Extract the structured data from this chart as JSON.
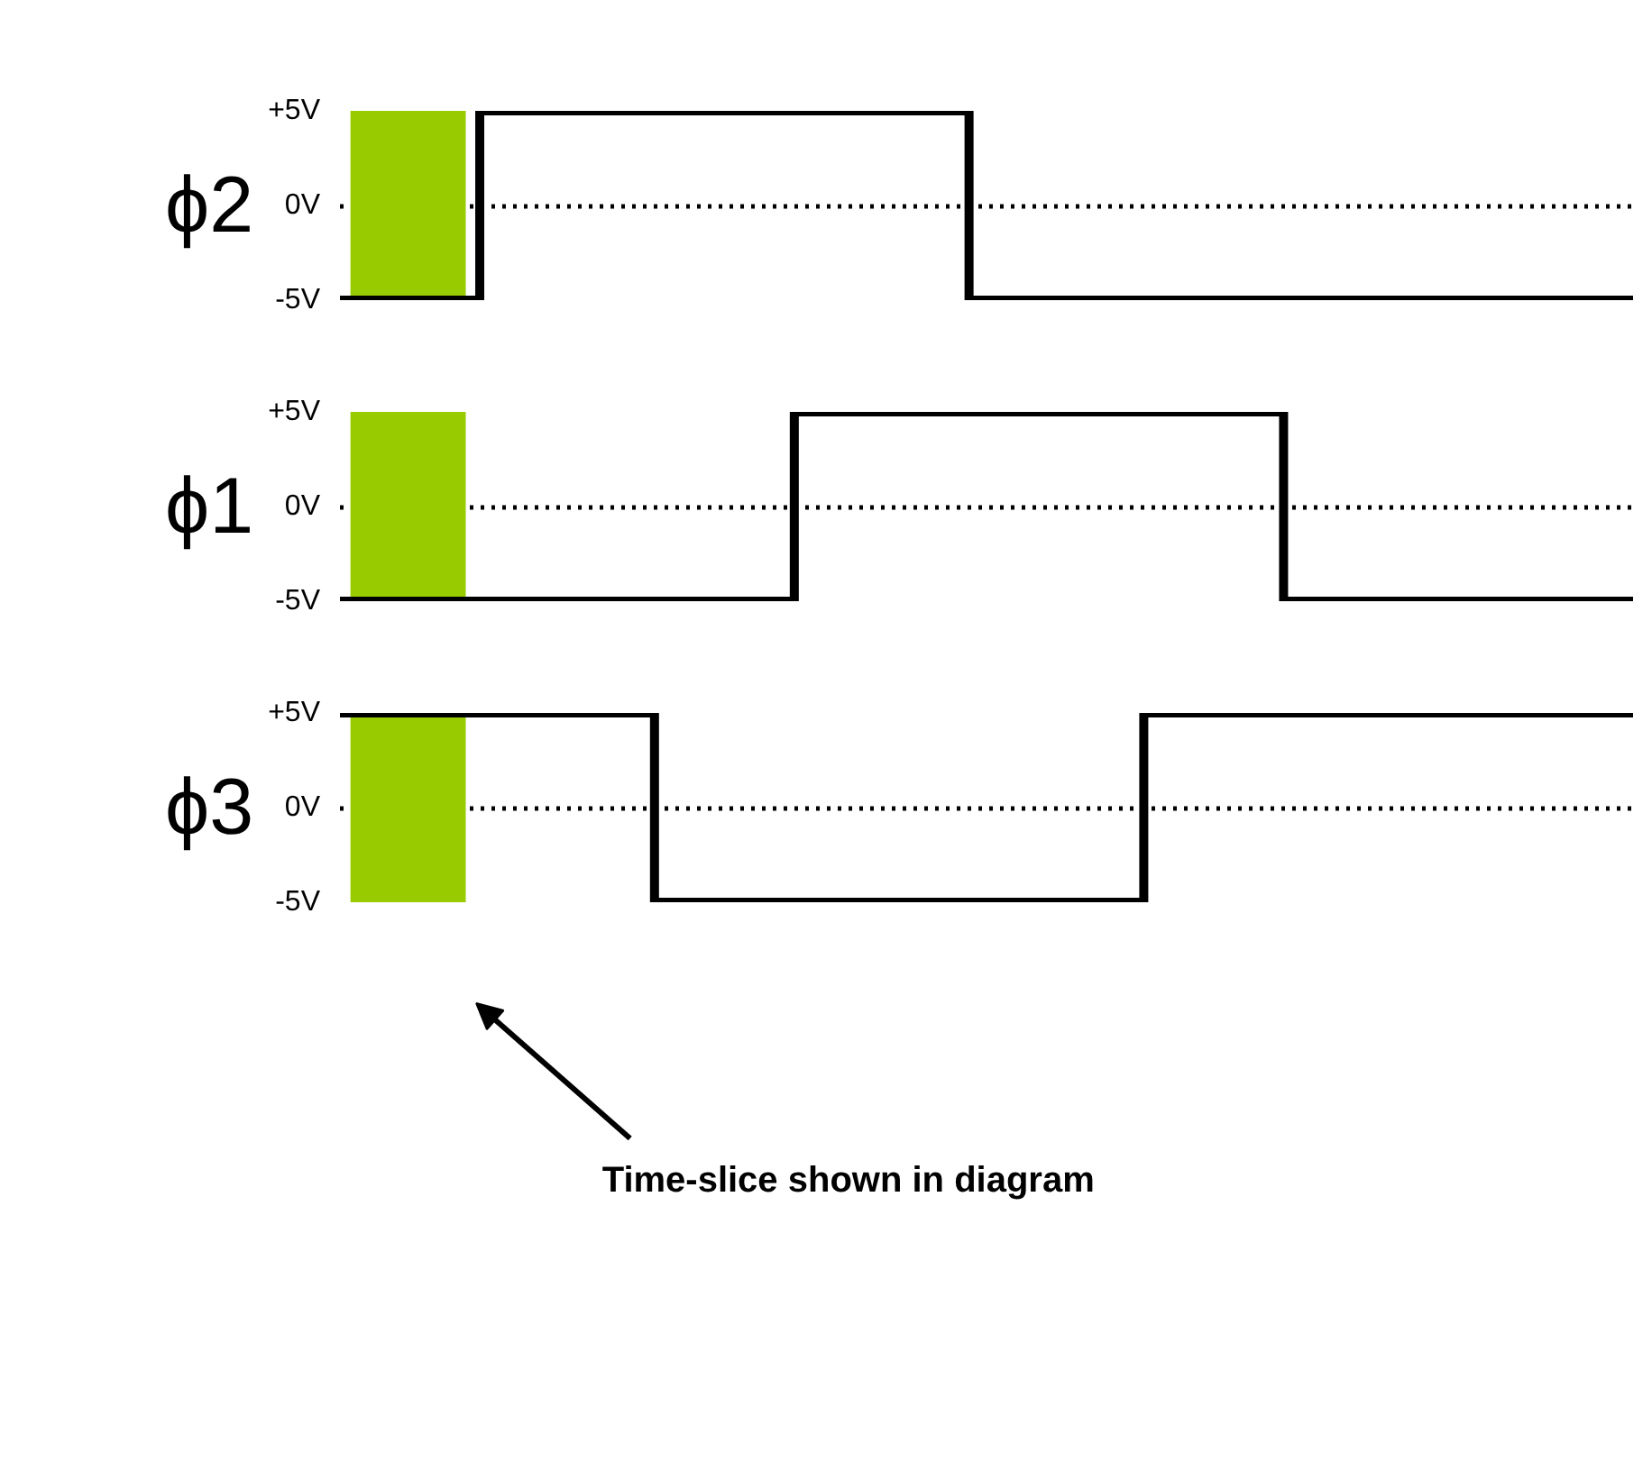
{
  "chart_data": [
    {
      "type": "step",
      "ylabel": "ϕ2",
      "categories": [
        null,
        null,
        null,
        null,
        null,
        null,
        null,
        null,
        null,
        null,
        null,
        null,
        null,
        null,
        null,
        null,
        null,
        null,
        null,
        null,
        null,
        null,
        null,
        null,
        null,
        null,
        null,
        null,
        null,
        null,
        null,
        null,
        null,
        null,
        null,
        null,
        null,
        null
      ],
      "values": [
        -5,
        -5,
        -5,
        -5,
        5,
        5,
        5,
        5,
        5,
        5,
        5,
        5,
        5,
        5,
        5,
        5,
        5,
        5,
        -5,
        -5,
        -5,
        -5,
        -5,
        -5,
        -5,
        -5,
        -5,
        -5,
        -5,
        -5,
        -5,
        -5,
        -5,
        -5,
        -5,
        -5,
        -5,
        -5
      ],
      "color": "#000000",
      "ylim": [
        -5,
        5
      ],
      "yticks": [
        {
          "value": -5,
          "label": "-5V"
        },
        {
          "value": 0,
          "label": "0V"
        },
        {
          "value": 5,
          "label": "+5V"
        }
      ],
      "grid": "y"
    },
    {
      "type": "step",
      "ylabel": "ϕ1",
      "categories": [
        null,
        null,
        null,
        null,
        null,
        null,
        null,
        null,
        null,
        null,
        null,
        null,
        null,
        null,
        null,
        null,
        null,
        null,
        null,
        null,
        null,
        null,
        null,
        null,
        null,
        null,
        null,
        null,
        null,
        null,
        null,
        null,
        null,
        null,
        null,
        null,
        null,
        null
      ],
      "values": [
        -5,
        -5,
        -5,
        -5,
        -5,
        -5,
        -5,
        -5,
        -5,
        -5,
        -5,
        -5,
        -5,
        5,
        5,
        5,
        5,
        5,
        5,
        5,
        5,
        5,
        5,
        5,
        5,
        5,
        5,
        -5,
        -5,
        -5,
        -5,
        -5,
        -5,
        -5,
        -5,
        -5,
        -5,
        -5
      ],
      "color": "#000000",
      "ylim": [
        -5,
        5
      ],
      "yticks": [
        {
          "value": -5,
          "label": "-5V"
        },
        {
          "value": 0,
          "label": "0V"
        },
        {
          "value": 5,
          "label": "+5V"
        }
      ],
      "grid": "y"
    },
    {
      "type": "step",
      "ylabel": "ϕ3",
      "categories": [
        null,
        null,
        null,
        null,
        null,
        null,
        null,
        null,
        null,
        null,
        null,
        null,
        null,
        null,
        null,
        null,
        null,
        null,
        null,
        null,
        null,
        null,
        null,
        null,
        null,
        null,
        null,
        null,
        null,
        null,
        null,
        null,
        null,
        null,
        null,
        null,
        null,
        null
      ],
      "values": [
        5,
        5,
        5,
        5,
        5,
        5,
        5,
        5,
        5,
        -5,
        -5,
        -5,
        -5,
        -5,
        -5,
        -5,
        -5,
        -5,
        -5,
        -5,
        -5,
        -5,
        -5,
        5,
        5,
        5,
        5,
        5,
        5,
        5,
        5,
        5,
        5,
        5,
        5,
        5,
        5,
        5
      ],
      "color": "#000000",
      "ylim": [
        -5,
        5
      ],
      "yticks": [
        {
          "value": -5,
          "label": "-5V"
        },
        {
          "value": 0,
          "label": "0V"
        },
        {
          "value": 5,
          "label": "+5V"
        }
      ],
      "grid": "y",
      "annotations": [
        "Time-slice shown in diagram"
      ]
    }
  ]
}
